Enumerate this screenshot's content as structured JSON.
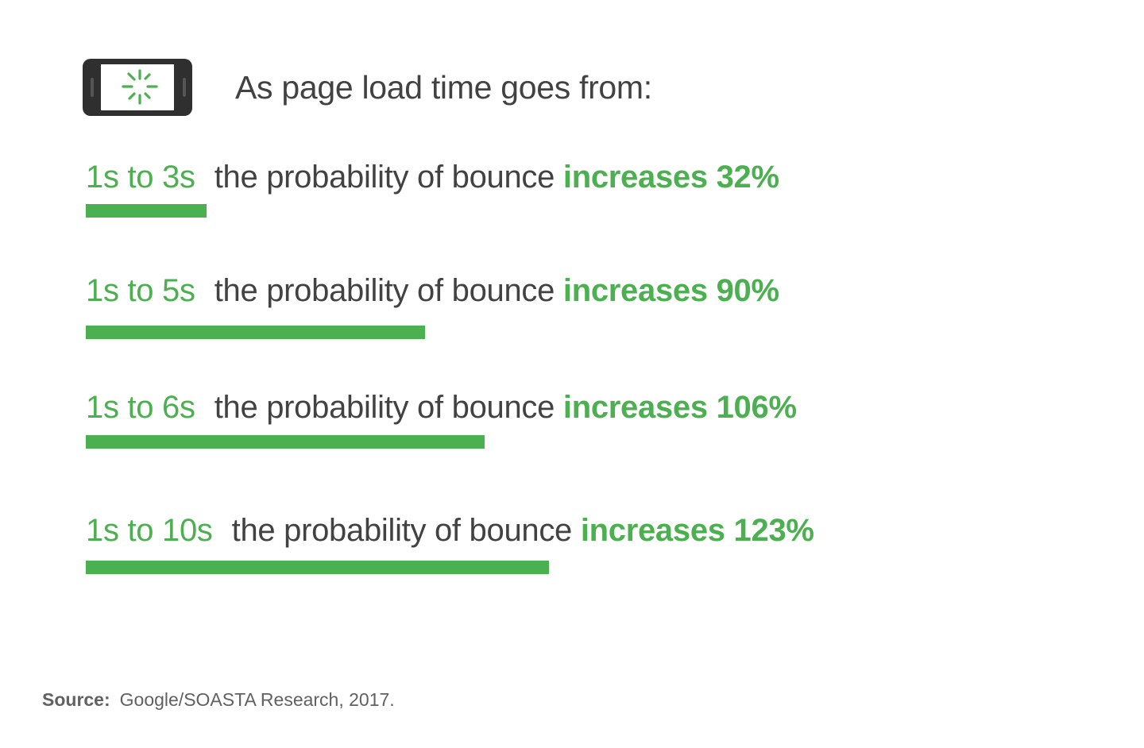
{
  "header": {
    "icon": "phone-loading-icon",
    "text": "As page load time goes from:"
  },
  "chart_data": {
    "type": "bar",
    "orientation": "horizontal",
    "categories": [
      "1s to 3s",
      "1s to 5s",
      "1s to 6s",
      "1s to 10s"
    ],
    "values": [
      32,
      90,
      106,
      123
    ],
    "unit": "%",
    "rows": [
      {
        "range": "1s to 3s",
        "middle": "the probability of bounce",
        "verb": "increases",
        "value_label": "32%"
      },
      {
        "range": "1s to 5s",
        "middle": "the probability of bounce",
        "verb": "increases",
        "value_label": "90%"
      },
      {
        "range": "1s to 6s",
        "middle": "the probability of bounce",
        "verb": "increases",
        "value_label": "106%"
      },
      {
        "range": "1s to 10s",
        "middle": "the probability of bounce",
        "verb": "increases",
        "value_label": "123%"
      }
    ],
    "colors": {
      "accent": "#4caf50",
      "text": "#424242"
    }
  },
  "source": {
    "label": "Source:",
    "text": "Google/SOASTA Research, 2017."
  }
}
